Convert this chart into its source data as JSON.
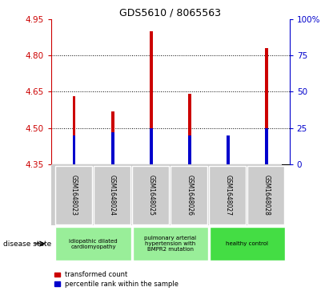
{
  "title": "GDS5610 / 8065563",
  "samples": [
    "GSM1648023",
    "GSM1648024",
    "GSM1648025",
    "GSM1648026",
    "GSM1648027",
    "GSM1648028"
  ],
  "transformed_counts": [
    4.63,
    4.57,
    4.9,
    4.64,
    4.46,
    4.83
  ],
  "percentile_ranks": [
    20,
    22,
    25,
    20,
    20,
    25
  ],
  "ylim_left": [
    4.35,
    4.95
  ],
  "ylim_right": [
    0,
    100
  ],
  "yticks_left": [
    4.35,
    4.5,
    4.65,
    4.8,
    4.95
  ],
  "yticks_right": [
    0,
    25,
    50,
    75,
    100
  ],
  "ytick_labels_right": [
    "0",
    "25",
    "50",
    "75",
    "100%"
  ],
  "grid_lines": [
    4.5,
    4.65,
    4.8
  ],
  "bar_color": "#cc0000",
  "percentile_color": "#0000cc",
  "bar_width": 0.08,
  "blue_bar_width": 0.08,
  "disease_groups": [
    {
      "label": "idiopathic dilated\ncardiomyopathy",
      "start": 0,
      "end": 2,
      "color": "#99ee99"
    },
    {
      "label": "pulmonary arterial\nhypertension with\nBMPR2 mutation",
      "start": 2,
      "end": 4,
      "color": "#99ee99"
    },
    {
      "label": "healthy control",
      "start": 4,
      "end": 6,
      "color": "#44dd44"
    }
  ],
  "legend_label_red": "transformed count",
  "legend_label_blue": "percentile rank within the sample",
  "disease_state_label": "disease state",
  "background_color": "#ffffff",
  "plot_bg_color": "#ffffff",
  "tick_color_left": "#cc0000",
  "tick_color_right": "#0000cc",
  "sample_label_bg": "#cccccc",
  "base_value": 4.35
}
